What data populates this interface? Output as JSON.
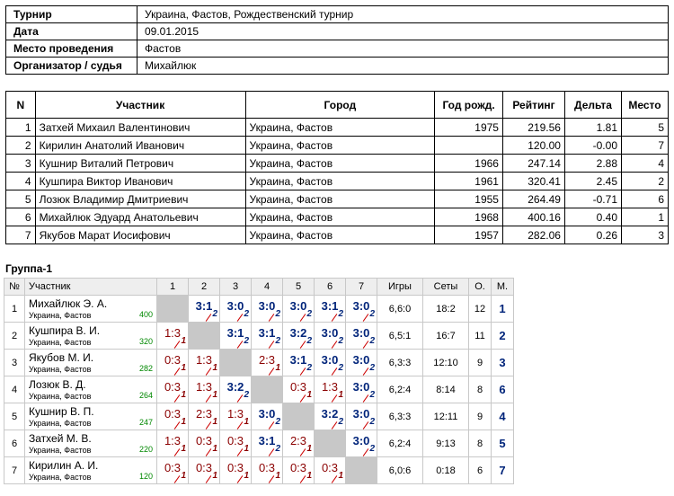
{
  "info": [
    {
      "label": "Турнир",
      "value": "Украина, Фастов, Рождественский турнир"
    },
    {
      "label": "Дата",
      "value": "09.01.2015"
    },
    {
      "label": "Место проведения",
      "value": "Фастов"
    },
    {
      "label": "Организатор / судья",
      "value": "Михайлюк"
    }
  ],
  "players_headers": [
    "N",
    "Участник",
    "Город",
    "Год рожд.",
    "Рейтинг",
    "Дельта",
    "Место"
  ],
  "players": [
    {
      "n": "1",
      "name": "Затхей Михаил Валентинович",
      "city": "Украина, Фастов",
      "year": "1975",
      "rating": "219.56",
      "delta": "1.81",
      "place": "5"
    },
    {
      "n": "2",
      "name": "Кирилин Анатолий Иванович",
      "city": "Украина, Фастов",
      "year": "",
      "rating": "120.00",
      "delta": "-0.00",
      "place": "7"
    },
    {
      "n": "3",
      "name": "Кушнир Виталий Петрович",
      "city": "Украина, Фастов",
      "year": "1966",
      "rating": "247.14",
      "delta": "2.88",
      "place": "4"
    },
    {
      "n": "4",
      "name": "Кушпира Виктор Иванович",
      "city": "Украина, Фастов",
      "year": "1961",
      "rating": "320.41",
      "delta": "2.45",
      "place": "2"
    },
    {
      "n": "5",
      "name": "Лозюк Владимир Дмитриевич",
      "city": "Украина, Фастов",
      "year": "1955",
      "rating": "264.49",
      "delta": "-0.71",
      "place": "6"
    },
    {
      "n": "6",
      "name": "Михайлюк Эдуард Анатольевич",
      "city": "Украина, Фастов",
      "year": "1968",
      "rating": "400.16",
      "delta": "0.40",
      "place": "1"
    },
    {
      "n": "7",
      "name": "Якубов Марат Иосифович",
      "city": "Украина, Фастов",
      "year": "1957",
      "rating": "282.06",
      "delta": "0.26",
      "place": "3"
    }
  ],
  "group": {
    "title": "Группа-1",
    "headers": [
      "№",
      "Участник",
      "1",
      "2",
      "3",
      "4",
      "5",
      "6",
      "7",
      "Игры",
      "Сеты",
      "О.",
      "М."
    ],
    "rows": [
      {
        "n": "1",
        "name": "Михайлюк Э. А.",
        "city": "Украина, Фастов",
        "rating": "400",
        "cells": [
          "",
          "3:1|2|w",
          "3:0|2|w",
          "3:0|2|w",
          "3:0|2|w",
          "3:1|2|w",
          "3:0|2|w"
        ],
        "games": "6,6:0",
        "sets": "18:2",
        "points": "12",
        "place": "1"
      },
      {
        "n": "2",
        "name": "Кушпира В. И.",
        "city": "Украина, Фастов",
        "rating": "320",
        "cells": [
          "1:3|1|l",
          "",
          "3:1|2|w",
          "3:1|2|w",
          "3:2|2|w",
          "3:0|2|w",
          "3:0|2|w"
        ],
        "games": "6,5:1",
        "sets": "16:7",
        "points": "11",
        "place": "2"
      },
      {
        "n": "3",
        "name": "Якубов М. И.",
        "city": "Украина, Фастов",
        "rating": "282",
        "cells": [
          "0:3|1|l",
          "1:3|1|l",
          "",
          "2:3|1|l",
          "3:1|2|w",
          "3:0|2|w",
          "3:0|2|w"
        ],
        "games": "6,3:3",
        "sets": "12:10",
        "points": "9",
        "place": "3"
      },
      {
        "n": "4",
        "name": "Лозюк В. Д.",
        "city": "Украина, Фастов",
        "rating": "264",
        "cells": [
          "0:3|1|l",
          "1:3|1|l",
          "3:2|2|w",
          "",
          "0:3|1|l",
          "1:3|1|l",
          "3:0|2|w"
        ],
        "games": "6,2:4",
        "sets": "8:14",
        "points": "8",
        "place": "6"
      },
      {
        "n": "5",
        "name": "Кушнир В. П.",
        "city": "Украина, Фастов",
        "rating": "247",
        "cells": [
          "0:3|1|l",
          "2:3|1|l",
          "1:3|1|l",
          "3:0|2|w",
          "",
          "3:2|2|w",
          "3:0|2|w"
        ],
        "games": "6,3:3",
        "sets": "12:11",
        "points": "9",
        "place": "4"
      },
      {
        "n": "6",
        "name": "Затхей М. В.",
        "city": "Украина, Фастов",
        "rating": "220",
        "cells": [
          "1:3|1|l",
          "0:3|1|l",
          "0:3|1|l",
          "3:1|2|w",
          "2:3|1|l",
          "",
          "3:0|2|w"
        ],
        "games": "6,2:4",
        "sets": "9:13",
        "points": "8",
        "place": "5"
      },
      {
        "n": "7",
        "name": "Кирилин А. И.",
        "city": "Украина, Фастов",
        "rating": "120",
        "cells": [
          "0:3|1|l",
          "0:3|1|l",
          "0:3|1|l",
          "0:3|1|l",
          "0:3|1|l",
          "0:3|1|l",
          ""
        ],
        "games": "6,0:6",
        "sets": "0:18",
        "points": "6",
        "place": "7"
      }
    ]
  }
}
